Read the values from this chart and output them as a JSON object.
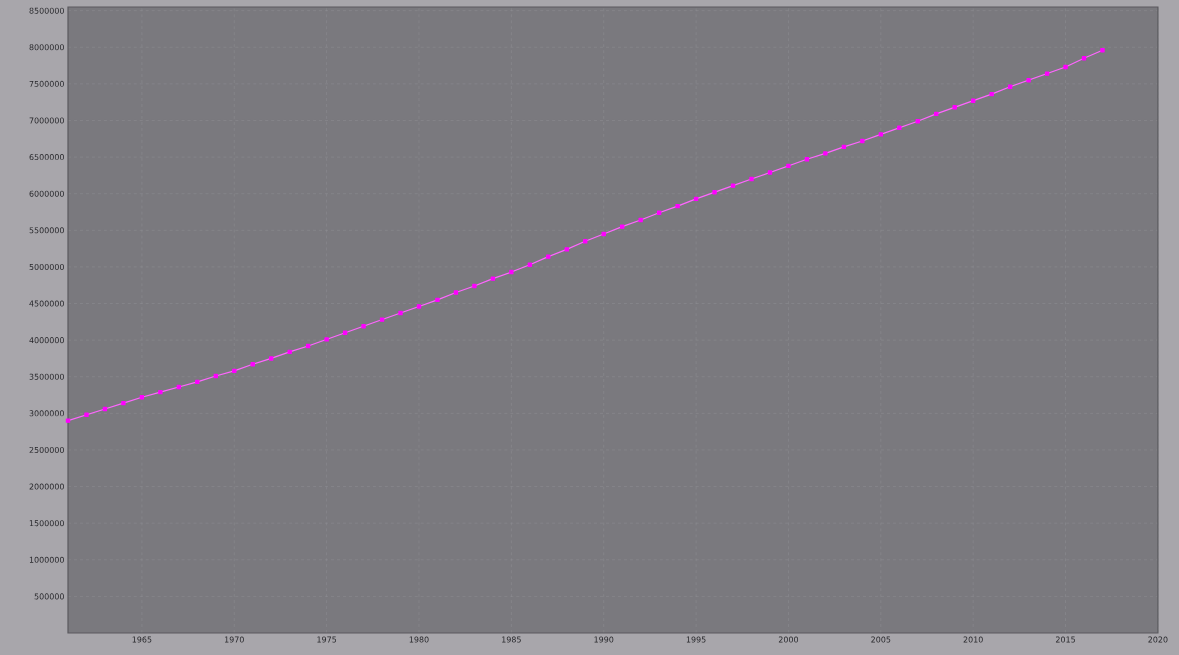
{
  "chart_data": {
    "type": "line",
    "x": [
      1961,
      1962,
      1963,
      1964,
      1965,
      1966,
      1967,
      1968,
      1969,
      1970,
      1971,
      1972,
      1973,
      1974,
      1975,
      1976,
      1977,
      1978,
      1979,
      1980,
      1981,
      1982,
      1983,
      1984,
      1985,
      1986,
      1987,
      1988,
      1989,
      1990,
      1991,
      1992,
      1993,
      1994,
      1995,
      1996,
      1997,
      1998,
      1999,
      2000,
      2001,
      2002,
      2003,
      2004,
      2005,
      2006,
      2007,
      2008,
      2009,
      2010,
      2011,
      2012,
      2013,
      2014,
      2015,
      2016,
      2017
    ],
    "series": [
      {
        "color": "#ff00ff",
        "values": [
          2900000,
          2980000,
          3060000,
          3140000,
          3220000,
          3290000,
          3360000,
          3430000,
          3510000,
          3580000,
          3670000,
          3750000,
          3840000,
          3920000,
          4010000,
          4100000,
          4190000,
          4280000,
          4370000,
          4460000,
          4550000,
          4650000,
          4740000,
          4840000,
          4930000,
          5030000,
          5140000,
          5240000,
          5350000,
          5450000,
          5550000,
          5640000,
          5740000,
          5830000,
          5930000,
          6020000,
          6110000,
          6200000,
          6290000,
          6380000,
          6470000,
          6550000,
          6640000,
          6720000,
          6810000,
          6900000,
          6990000,
          7090000,
          7180000,
          7270000,
          7360000,
          7460000,
          7550000,
          7640000,
          7730000,
          7850000,
          7960000
        ]
      }
    ],
    "xlim": [
      1961,
      2020
    ],
    "xticks": [
      1965,
      1970,
      1975,
      1980,
      1985,
      1990,
      1995,
      2000,
      2005,
      2010,
      2015,
      2020
    ],
    "ylim": [
      0,
      8550000
    ],
    "yticks": [
      500000,
      1000000,
      1500000,
      2000000,
      2500000,
      3000000,
      3500000,
      4000000,
      4500000,
      5000000,
      5500000,
      6000000,
      6500000,
      7000000,
      7500000,
      8000000,
      8500000
    ],
    "grid": true,
    "marker": "square",
    "line_style": "solid"
  }
}
